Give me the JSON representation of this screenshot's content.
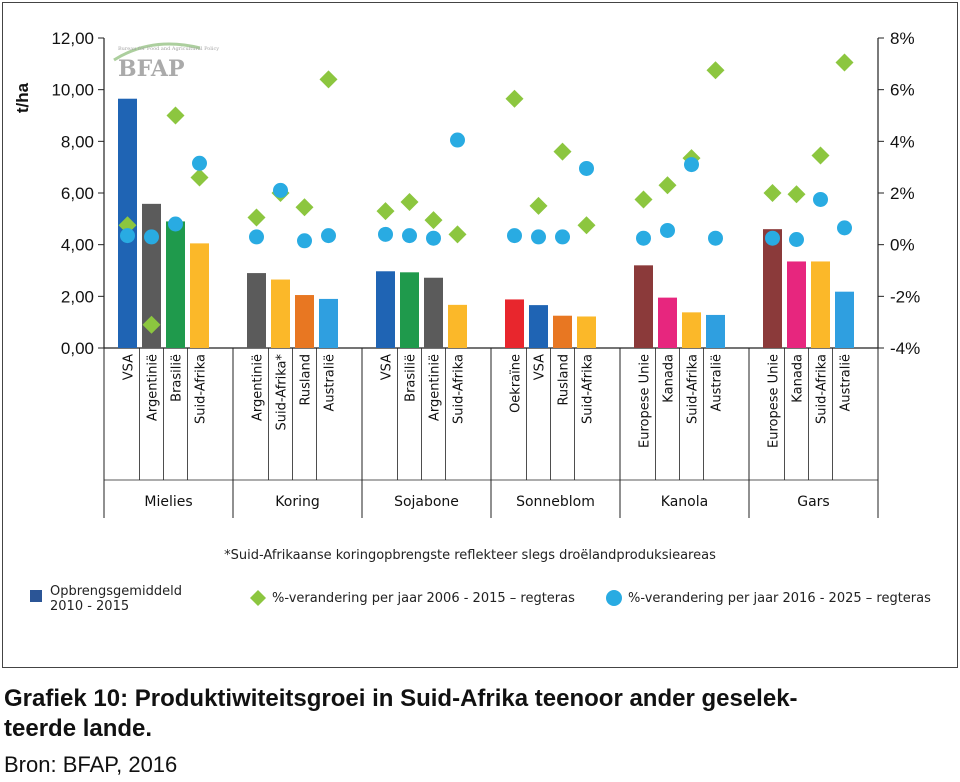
{
  "chart_data": {
    "type": "bar",
    "title": "",
    "ylabel": "t/ha",
    "ylim": [
      0,
      12
    ],
    "y_ticks": [
      "0,00",
      "2,00",
      "4,00",
      "6,00",
      "8,00",
      "10,00",
      "12,00"
    ],
    "y2lim": [
      -4,
      8
    ],
    "y2_ticks": [
      "-4%",
      "-2%",
      "0%",
      "2%",
      "4%",
      "6%",
      "8%"
    ],
    "grid": false,
    "footnote": "*Suid-Afrikaanse koringopbrengste reflekteer slegs droëlandproduksieareas",
    "legend": {
      "placement": "bottom",
      "bar_label": "Opbrengsgemiddeld 2010 - 2015",
      "bar_label_lines": [
        "Opbrengsgemiddeld",
        "2010 - 2015"
      ],
      "diamond_label": "%-verandering per jaar 2006 - 2015 – regteras",
      "circle_label": "%-verandering per jaar 2016 - 2025 – regteras"
    },
    "colors": {
      "bar_legend": "#2b5596",
      "diamond": "#8cc63f",
      "circle": "#29abe2",
      "axis": "#222222"
    },
    "groups": [
      {
        "name": "Mielies",
        "countries": [
          "VSA",
          "Argentinië",
          "Brasilië",
          "Suid-Afrika"
        ],
        "yield": [
          9.65,
          5.58,
          4.9,
          4.05
        ],
        "colors": [
          "#1f64b4",
          "#5b5b5b",
          "#1f9a4c",
          "#fbb829"
        ],
        "change_2006_2015": [
          0.75,
          -3.1,
          5.0,
          2.6
        ],
        "change_2016_2025": [
          0.35,
          0.3,
          0.8,
          3.15
        ]
      },
      {
        "name": "Koring",
        "countries": [
          "Argentinië",
          "Suid-Afrika*",
          "Rusland",
          "Australië"
        ],
        "yield": [
          2.9,
          2.65,
          2.05,
          1.9
        ],
        "colors": [
          "#5b5b5b",
          "#fbb829",
          "#e87722",
          "#2f9fe0"
        ],
        "change_2006_2015": [
          1.05,
          2.0,
          1.45,
          6.4
        ],
        "change_2016_2025": [
          0.3,
          2.1,
          0.15,
          0.35
        ]
      },
      {
        "name": "Sojabone",
        "countries": [
          "VSA",
          "Brasilië",
          "Argentinië",
          "Suid-Afrika"
        ],
        "yield": [
          2.97,
          2.93,
          2.72,
          1.67
        ],
        "colors": [
          "#1f64b4",
          "#1f9a4c",
          "#5b5b5b",
          "#fbb829"
        ],
        "change_2006_2015": [
          1.3,
          1.65,
          0.95,
          0.4
        ],
        "change_2016_2025": [
          0.4,
          0.35,
          0.25,
          4.05
        ]
      },
      {
        "name": "Sonneblom",
        "countries": [
          "Oekraïne",
          "VSA",
          "Rusland",
          "Suid-Afrika"
        ],
        "yield": [
          1.88,
          1.66,
          1.25,
          1.22
        ],
        "colors": [
          "#e8262d",
          "#1f64b4",
          "#e87722",
          "#fbb829"
        ],
        "change_2006_2015": [
          5.65,
          1.5,
          3.6,
          0.75
        ],
        "change_2016_2025": [
          0.35,
          0.3,
          0.3,
          2.95
        ]
      },
      {
        "name": "Kanola",
        "countries": [
          "Europese Unie",
          "Kanada",
          "Suid-Afrika",
          "Australië"
        ],
        "yield": [
          3.2,
          1.95,
          1.38,
          1.28
        ],
        "colors": [
          "#8b3a3a",
          "#e7267e",
          "#fbb829",
          "#2f9fe0"
        ],
        "change_2006_2015": [
          1.75,
          2.3,
          3.35,
          6.75
        ],
        "change_2016_2025": [
          0.25,
          0.55,
          3.1,
          0.25
        ]
      },
      {
        "name": "Gars",
        "countries": [
          "Europese Unie",
          "Kanada",
          "Suid-Afrika",
          "Australië"
        ],
        "yield": [
          4.6,
          3.35,
          3.35,
          2.18
        ],
        "colors": [
          "#8b3a3a",
          "#e7267e",
          "#fbb829",
          "#2f9fe0"
        ],
        "change_2006_2015": [
          2.0,
          1.95,
          3.45,
          7.05
        ],
        "change_2016_2025": [
          0.25,
          0.2,
          1.75,
          0.65
        ]
      }
    ]
  },
  "logo": {
    "text": "BFAP",
    "subtext": "Bureau for Food and Agricultural Policy"
  },
  "caption": {
    "title_line1": "Grafiek 10: Produktiwiteitsgroei in Suid-Afrika teenoor ander geselek-",
    "title_line2": "teerde lande.",
    "source": "Bron: BFAP, 2016"
  }
}
